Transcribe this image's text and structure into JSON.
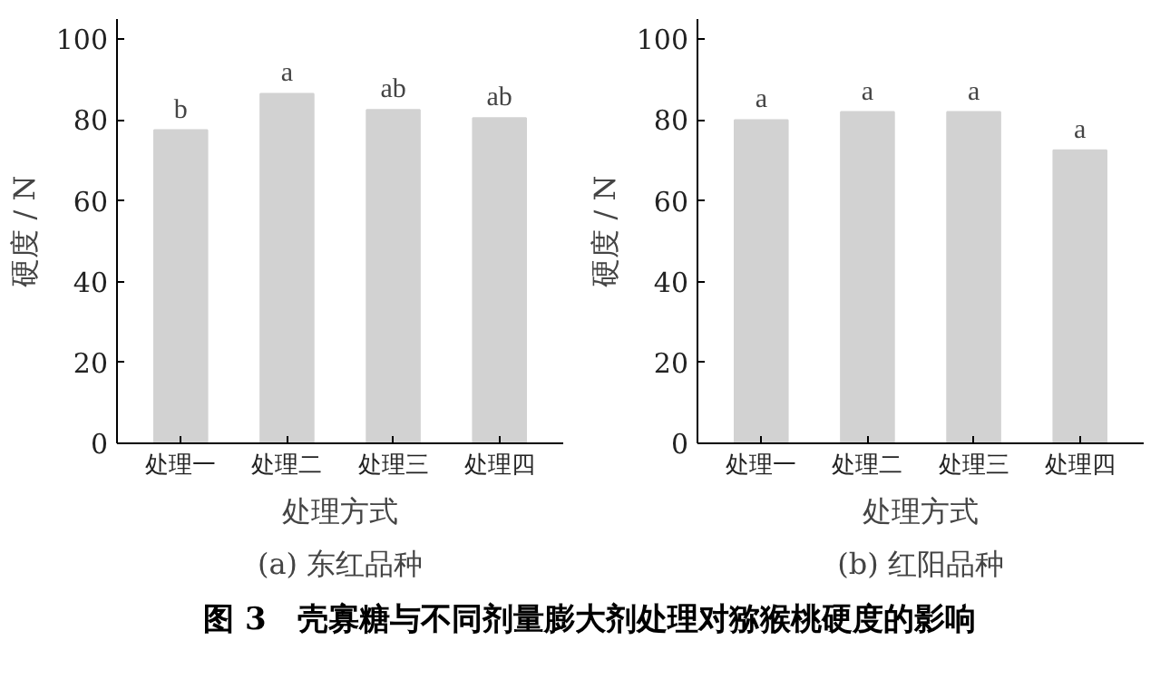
{
  "chart_data": [
    {
      "type": "bar",
      "title": "(a) 东红品种",
      "xlabel": "处理方式",
      "ylabel": "硬度 / N",
      "categories": [
        "处理一",
        "处理二",
        "处理三",
        "处理四"
      ],
      "values": [
        77.5,
        86.5,
        82.5,
        80.5
      ],
      "value_labels": [
        "b",
        "a",
        "ab",
        "ab"
      ],
      "color": "#d2d2d2",
      "ylim": [
        0,
        105
      ],
      "yticks": [
        0,
        20,
        40,
        60,
        80,
        100
      ],
      "grid": false,
      "annotations": [
        "图 3　壳寡糖与不同剂量膨大剂处理对猕猴桃硬度的影响"
      ]
    },
    {
      "type": "bar",
      "title": "(b) 红阳品种",
      "xlabel": "处理方式",
      "ylabel": "硬度 / N",
      "categories": [
        "处理一",
        "处理二",
        "处理三",
        "处理四"
      ],
      "values": [
        80,
        82,
        82,
        72.5
      ],
      "value_labels": [
        "a",
        "a",
        "a",
        "a"
      ],
      "color": "#d2d2d2",
      "ylim": [
        0,
        105
      ],
      "yticks": [
        0,
        20,
        40,
        60,
        80,
        100
      ],
      "grid": false
    }
  ]
}
